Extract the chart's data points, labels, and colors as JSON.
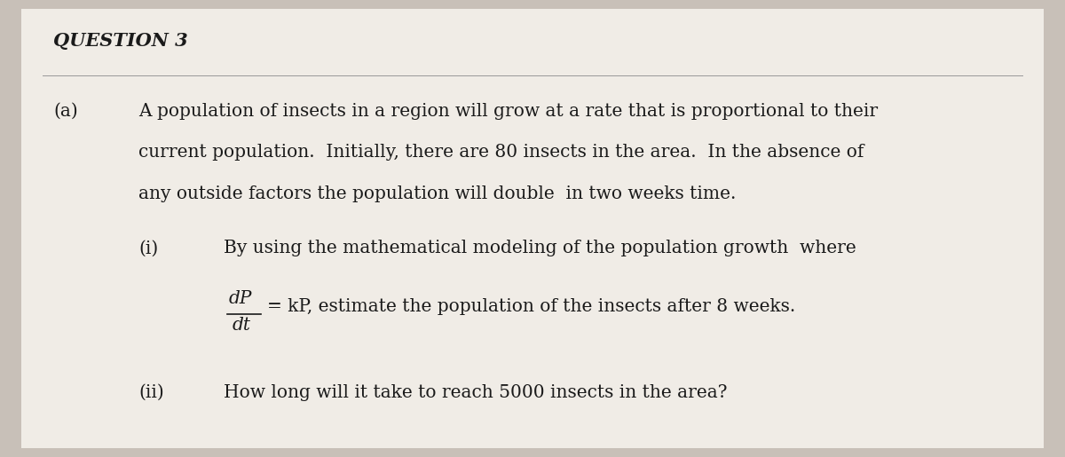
{
  "background_color": "#c8c0b8",
  "paper_color": "#f0ece6",
  "title": "QUESTION 3",
  "title_fontsize": 15,
  "label_a": "(a)",
  "label_i": "(i)",
  "label_ii": "(ii)",
  "para_a_line1": "A population of insects in a region will grow at a rate that is proportional to their",
  "para_a_line2": "current population.  Initially, there are 80 insects in the area.  In the absence of",
  "para_a_line3": "any outside factors the population will double  in two weeks time.",
  "para_i_line1": "By using the mathematical modeling of the population growth  where",
  "para_i_fraction_num": "dP",
  "para_i_fraction_den": "dt",
  "para_i_line2": "= kP, estimate the population of the insects after 8 weeks.",
  "para_ii_line1": "How long will it take to reach 5000 insects in the area?",
  "text_color": "#1a1a1a",
  "font_family": "serif",
  "body_fontsize": 14.5
}
